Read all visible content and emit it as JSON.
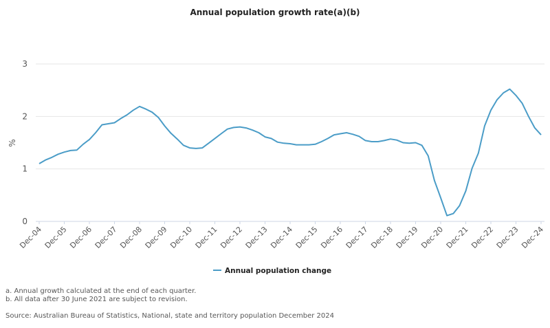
{
  "chart_data": {
    "type": "line",
    "title": "Annual population growth rate(a)(b)",
    "xlabel": "",
    "ylabel": "%",
    "ylim": [
      0,
      3
    ],
    "yticks": [
      "0",
      "1",
      "2",
      "3"
    ],
    "grid": true,
    "legend_position": "bottom",
    "xtick_labels": [
      "Dec-04",
      "Dec-05",
      "Dec-06",
      "Dec-07",
      "Dec-08",
      "Dec-09",
      "Dec-10",
      "Dec-11",
      "Dec-12",
      "Dec-13",
      "Dec-14",
      "Dec-15",
      "Dec-16",
      "Dec-17",
      "Dec-18",
      "Dec-19",
      "Dec-20",
      "Dec-21",
      "Dec-22",
      "Dec-23",
      "Dec-24"
    ],
    "x": [
      "Dec-04",
      "Mar-05",
      "Jun-05",
      "Sep-05",
      "Dec-05",
      "Mar-06",
      "Jun-06",
      "Sep-06",
      "Dec-06",
      "Mar-07",
      "Jun-07",
      "Sep-07",
      "Dec-07",
      "Mar-08",
      "Jun-08",
      "Sep-08",
      "Dec-08",
      "Mar-09",
      "Jun-09",
      "Sep-09",
      "Dec-09",
      "Mar-10",
      "Jun-10",
      "Sep-10",
      "Dec-10",
      "Mar-11",
      "Jun-11",
      "Sep-11",
      "Dec-11",
      "Mar-12",
      "Jun-12",
      "Sep-12",
      "Dec-12",
      "Mar-13",
      "Jun-13",
      "Sep-13",
      "Dec-13",
      "Mar-14",
      "Jun-14",
      "Sep-14",
      "Dec-14",
      "Mar-15",
      "Jun-15",
      "Sep-15",
      "Dec-15",
      "Mar-16",
      "Jun-16",
      "Sep-16",
      "Dec-16",
      "Mar-17",
      "Jun-17",
      "Sep-17",
      "Dec-17",
      "Mar-18",
      "Jun-18",
      "Sep-18",
      "Dec-18",
      "Mar-19",
      "Jun-19",
      "Sep-19",
      "Dec-19",
      "Mar-20",
      "Jun-20",
      "Sep-20",
      "Dec-20",
      "Mar-21",
      "Jun-21",
      "Sep-21",
      "Dec-21",
      "Mar-22",
      "Jun-22",
      "Sep-22",
      "Dec-22",
      "Mar-23",
      "Jun-23",
      "Sep-23",
      "Dec-23",
      "Mar-24",
      "Jun-24",
      "Sep-24",
      "Dec-24"
    ],
    "series": [
      {
        "name": "Annual population change",
        "color": "#4a9cc7",
        "values": [
          1.1,
          1.17,
          1.22,
          1.28,
          1.32,
          1.35,
          1.36,
          1.47,
          1.56,
          1.69,
          1.84,
          1.86,
          1.88,
          1.96,
          2.03,
          2.12,
          2.19,
          2.14,
          2.08,
          1.98,
          1.82,
          1.68,
          1.57,
          1.45,
          1.4,
          1.39,
          1.4,
          1.49,
          1.58,
          1.67,
          1.76,
          1.79,
          1.8,
          1.78,
          1.74,
          1.69,
          1.61,
          1.58,
          1.51,
          1.49,
          1.48,
          1.46,
          1.46,
          1.46,
          1.47,
          1.52,
          1.58,
          1.65,
          1.67,
          1.69,
          1.66,
          1.62,
          1.54,
          1.52,
          1.52,
          1.54,
          1.57,
          1.55,
          1.5,
          1.49,
          1.5,
          1.45,
          1.25,
          0.78,
          0.45,
          0.11,
          0.15,
          0.3,
          0.58,
          1.01,
          1.3,
          1.82,
          2.12,
          2.32,
          2.45,
          2.52,
          2.4,
          2.25,
          2.0,
          1.78,
          1.65
        ]
      }
    ]
  },
  "notes": [
    "a. Annual growth calculated at the end of each quarter.",
    "b. All data after 30 June 2021 are subject to revision."
  ],
  "source": "Source: Australian Bureau of Statistics, National, state and territory population December 2024"
}
